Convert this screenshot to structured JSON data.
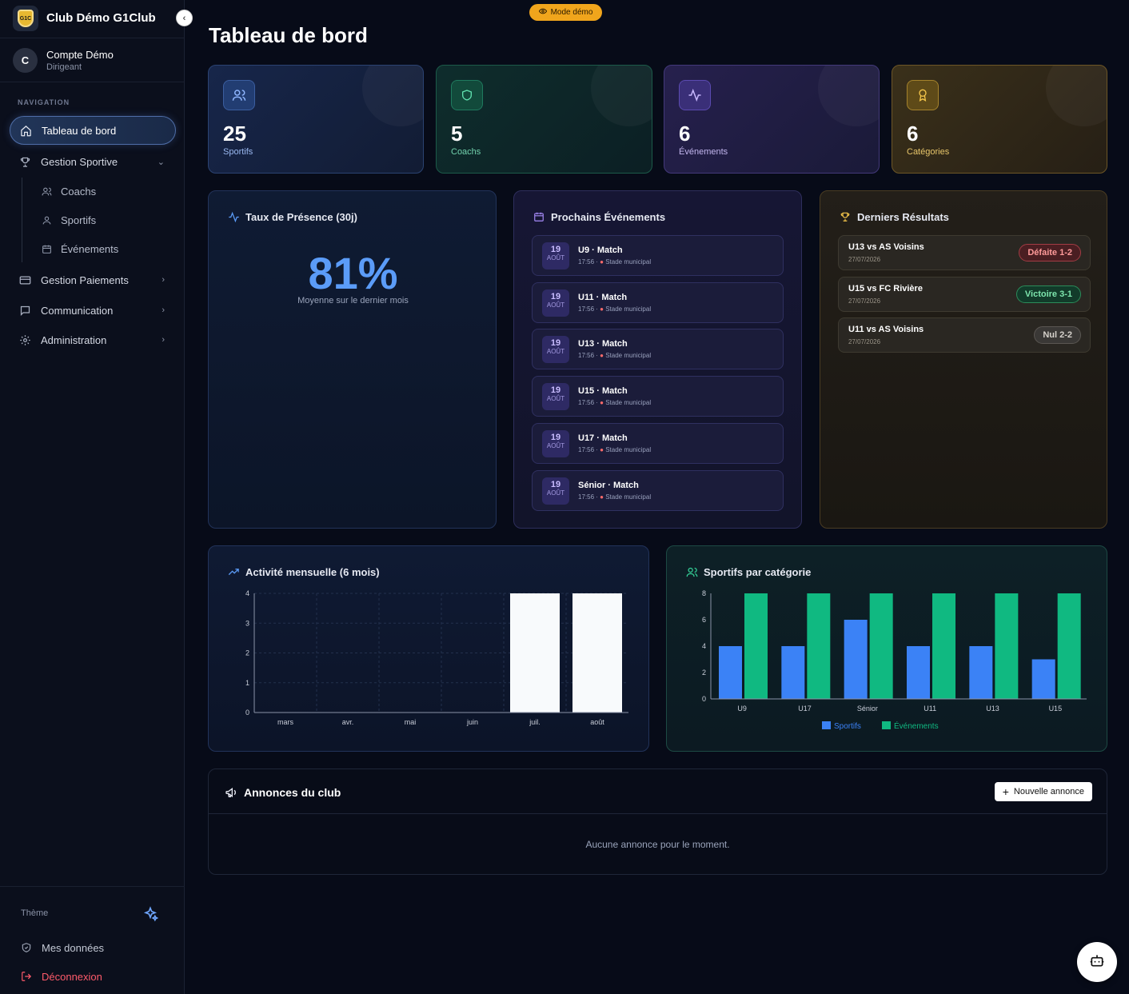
{
  "sidebar": {
    "brand_title": "Club Démo G1Club",
    "brand_logo_text": "G1C",
    "account": {
      "initial": "C",
      "name": "Compte Démo",
      "role": "Dirigeant"
    },
    "nav_heading": "NAVIGATION",
    "items": [
      {
        "label": "Tableau de bord",
        "icon": "home-icon",
        "active": true
      },
      {
        "label": "Gestion Sportive",
        "icon": "trophy-icon",
        "chevron": "down"
      },
      {
        "label": "Gestion Paiements",
        "icon": "card-icon",
        "chevron": "right"
      },
      {
        "label": "Communication",
        "icon": "message-icon",
        "chevron": "right"
      },
      {
        "label": "Administration",
        "icon": "gear-icon",
        "chevron": "right"
      }
    ],
    "sub_items": [
      {
        "label": "Coachs",
        "icon": "users-icon"
      },
      {
        "label": "Sportifs",
        "icon": "user-icon"
      },
      {
        "label": "Événements",
        "icon": "calendar-icon"
      }
    ],
    "theme_label": "Thème",
    "my_data": "Mes données",
    "logout": "Déconnexion"
  },
  "header": {
    "demo_badge": "Mode démo",
    "title": "Tableau de bord"
  },
  "stats": [
    {
      "value": "25",
      "label": "Sportifs",
      "icon": "users-icon",
      "color": "#5b9cf8"
    },
    {
      "value": "5",
      "label": "Coachs",
      "icon": "shield-icon",
      "color": "#34d399"
    },
    {
      "value": "6",
      "label": "Événements",
      "icon": "activity-icon",
      "color": "#a78bfa"
    },
    {
      "value": "6",
      "label": "Catégories",
      "icon": "award-icon",
      "color": "#f5c64a"
    }
  ],
  "presence": {
    "title": "Taux de Présence (30j)",
    "value": "81%",
    "subtitle": "Moyenne sur le dernier mois"
  },
  "events": {
    "title": "Prochains Événements",
    "items": [
      {
        "day": "19",
        "month": "AOÛT",
        "title": "U9 · Match",
        "time": "17:56 ·",
        "place": "Stade municipal"
      },
      {
        "day": "19",
        "month": "AOÛT",
        "title": "U11 · Match",
        "time": "17:56 ·",
        "place": "Stade municipal"
      },
      {
        "day": "19",
        "month": "AOÛT",
        "title": "U13 · Match",
        "time": "17:56 ·",
        "place": "Stade municipal"
      },
      {
        "day": "19",
        "month": "AOÛT",
        "title": "U15 · Match",
        "time": "17:56 ·",
        "place": "Stade municipal"
      },
      {
        "day": "19",
        "month": "AOÛT",
        "title": "U17 · Match",
        "time": "17:56 ·",
        "place": "Stade municipal"
      },
      {
        "day": "19",
        "month": "AOÛT",
        "title": "Sénior · Match",
        "time": "17:56 ·",
        "place": "Stade municipal"
      }
    ]
  },
  "results": {
    "title": "Derniers Résultats",
    "items": [
      {
        "match": "U13 vs AS Voisins",
        "date": "27/07/2026",
        "badge": "Défaite 1-2",
        "kind": "loss"
      },
      {
        "match": "U15 vs FC Rivière",
        "date": "27/07/2026",
        "badge": "Victoire 3-1",
        "kind": "win"
      },
      {
        "match": "U11 vs AS Voisins",
        "date": "27/07/2026",
        "badge": "Nul 2-2",
        "kind": "draw"
      }
    ]
  },
  "chart_data": [
    {
      "type": "bar",
      "title": "Activité mensuelle (6 mois)",
      "categories": [
        "mars",
        "avr.",
        "mai",
        "juin",
        "juil.",
        "août"
      ],
      "values": [
        0,
        0,
        0,
        0,
        4,
        4
      ],
      "ylim": [
        0,
        4
      ],
      "yticks": [
        0,
        1,
        2,
        3,
        4
      ],
      "grid": true,
      "bar_color": "#f8fafc"
    },
    {
      "type": "bar",
      "title": "Sportifs par catégorie",
      "categories": [
        "U9",
        "U17",
        "Sénior",
        "U11",
        "U13",
        "U15"
      ],
      "series": [
        {
          "name": "Sportifs",
          "values": [
            4,
            4,
            6,
            4,
            4,
            3
          ],
          "color": "#3b82f6"
        },
        {
          "name": "Événements",
          "values": [
            8,
            8,
            8,
            8,
            8,
            8
          ],
          "color": "#10b981"
        }
      ],
      "ylim": [
        0,
        8
      ],
      "yticks": [
        0,
        2,
        4,
        6,
        8
      ],
      "legend": "bottom"
    }
  ],
  "announcements": {
    "title": "Annonces du club",
    "button": "Nouvelle annonce",
    "empty": "Aucune annonce pour le moment."
  }
}
